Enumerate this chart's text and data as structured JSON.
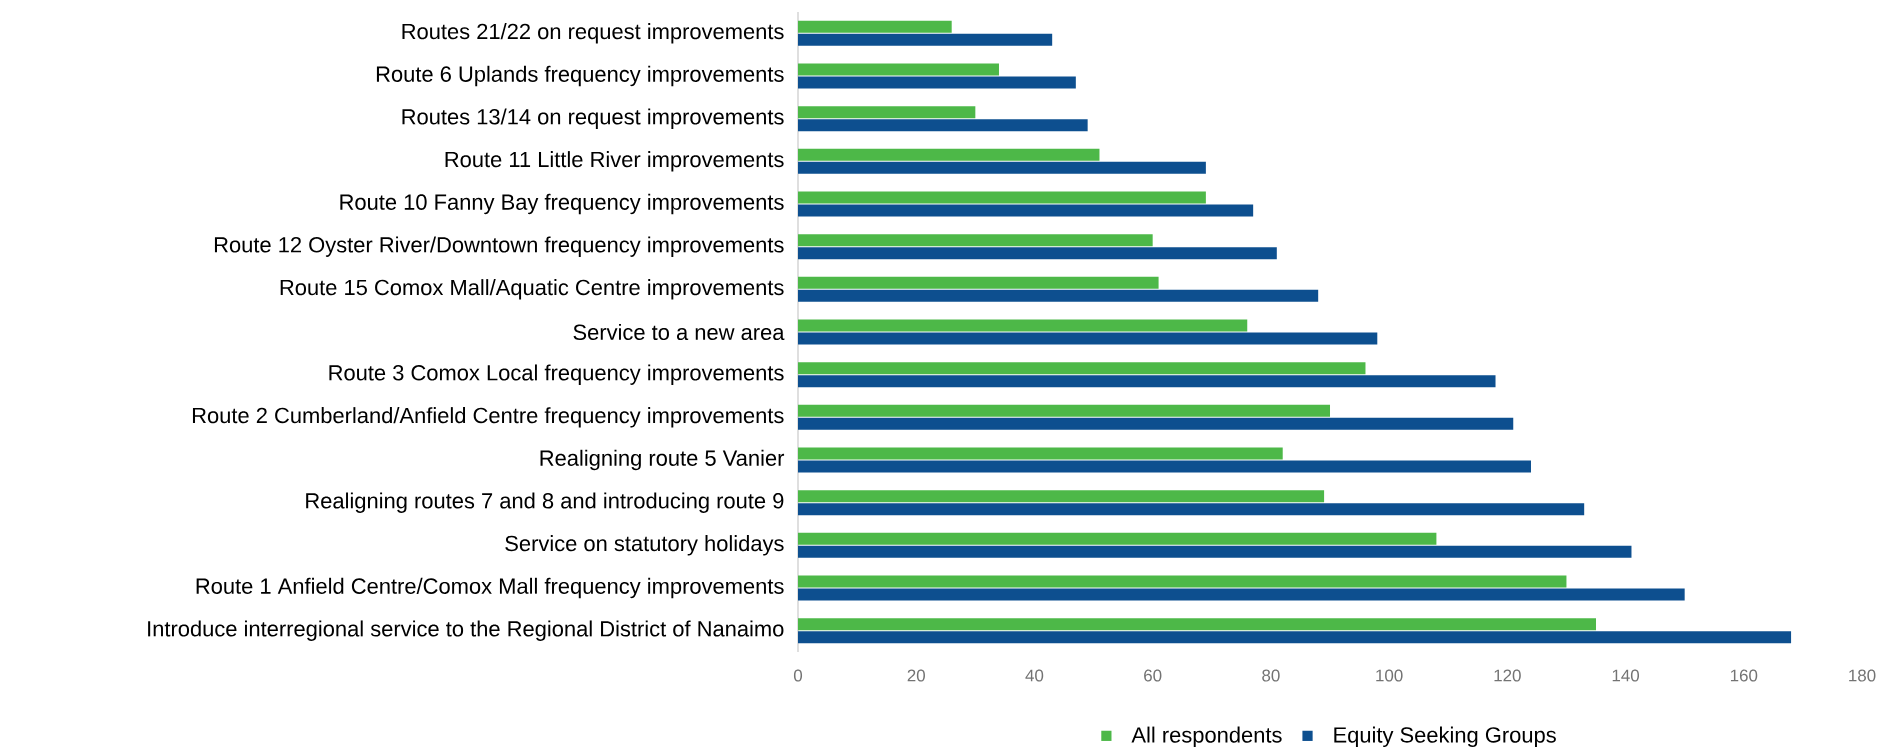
{
  "chart_data": {
    "type": "bar",
    "orientation": "horizontal",
    "categories": [
      "Routes 21/22 on request improvements",
      "Route 6 Uplands frequency improvements",
      "Routes 13/14 on request improvements",
      "Route 11 Little River improvements",
      "Route 10 Fanny Bay frequency improvements",
      "Route 12 Oyster River/Downtown frequency improvements",
      "Route 15 Comox Mall/Aquatic Centre improvements",
      "Service to a new area",
      "Route 3 Comox Local frequency improvements",
      "Route 2 Cumberland/Anfield Centre frequency improvements",
      "Realigning route 5 Vanier",
      "Realigning routes 7 and 8 and introducing route 9",
      "Service on statutory holidays",
      "Route 1 Anfield Centre/Comox Mall frequency improvements",
      "Introduce interregional service to the Regional District of Nanaimo"
    ],
    "series": [
      {
        "name": "All respondents",
        "color": "#4db848",
        "values": [
          26,
          34,
          30,
          51,
          69,
          60,
          61,
          76,
          96,
          90,
          82,
          89,
          108,
          130,
          135
        ]
      },
      {
        "name": "Equity Seeking Groups",
        "color": "#0d4f8f",
        "values": [
          43,
          47,
          49,
          69,
          77,
          81,
          88,
          98,
          118,
          121,
          124,
          133,
          141,
          150,
          168
        ]
      }
    ],
    "xlim": [
      0,
      180
    ],
    "xticks": [
      0,
      20,
      40,
      60,
      80,
      100,
      120,
      140,
      160,
      180
    ],
    "legend": "bottom",
    "grid": false
  }
}
